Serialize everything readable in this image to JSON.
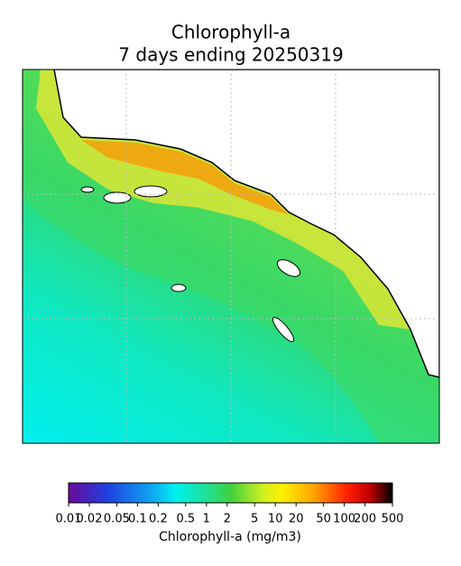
{
  "title": [
    "Chlorophyll-a",
    "7 days ending 20250319"
  ],
  "colorbar": {
    "label": "Chlorophyll-a (mg/m3)",
    "log": true,
    "lim": [
      0.01,
      500
    ],
    "ticks": [
      0.01,
      0.02,
      0.05,
      0.1,
      0.2,
      0.5,
      1,
      2,
      5,
      10,
      20,
      50,
      100,
      200,
      500
    ]
  }
}
